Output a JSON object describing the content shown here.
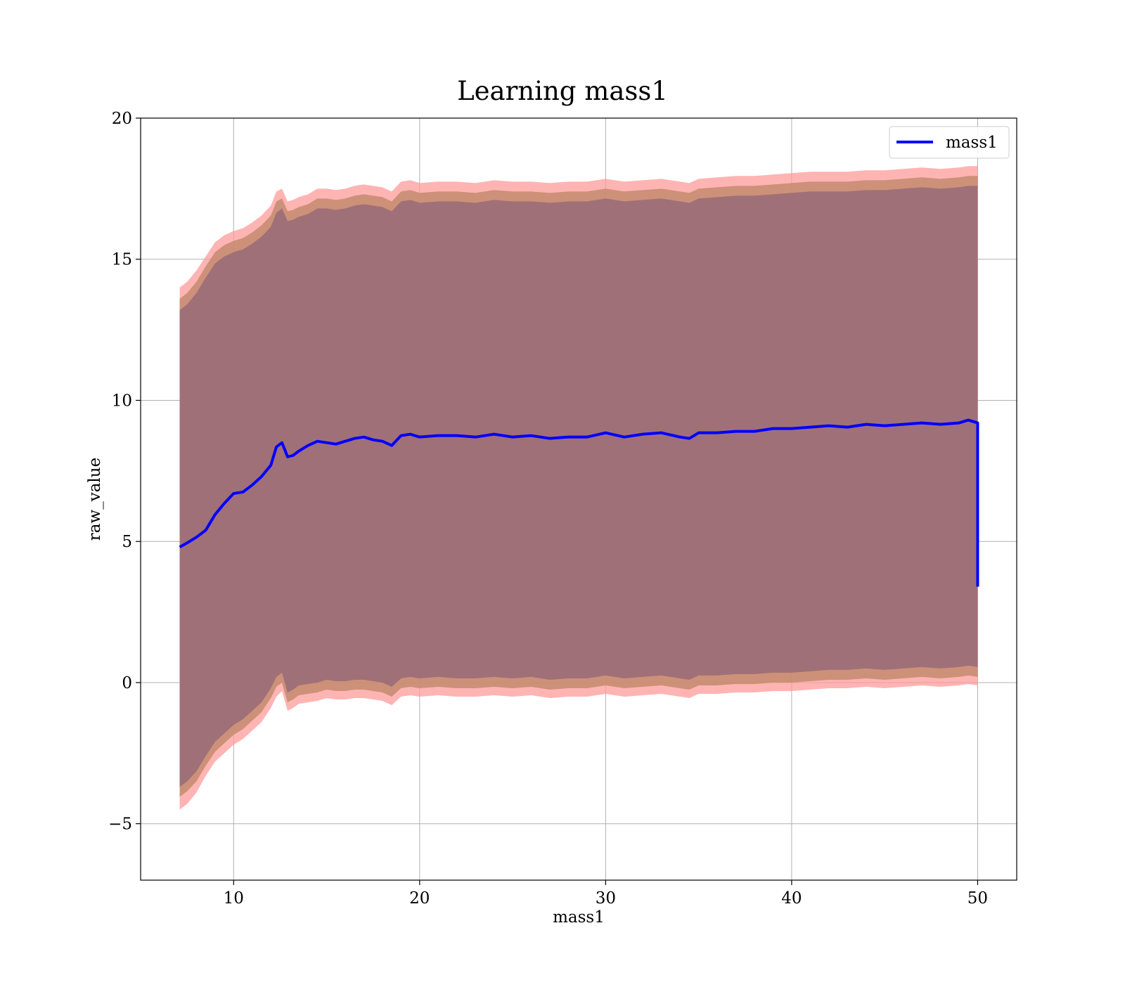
{
  "colors": {
    "line": "#0000ff",
    "band_outer": "#ff9b9b",
    "band_middle": "#c38b6d",
    "band_inner": "#a07078",
    "grid": "#b0b0b0",
    "axes": "#000000"
  },
  "chart_data": {
    "type": "line",
    "title": "Learning mass1",
    "xlabel": "mass1",
    "ylabel": "raw_value",
    "xlim": [
      5,
      52.1
    ],
    "ylim": [
      -7,
      20
    ],
    "xticks": [
      10,
      20,
      30,
      40,
      50
    ],
    "xtick_labels": [
      "10",
      "20",
      "30",
      "40",
      "50"
    ],
    "yticks": [
      -5,
      0,
      5,
      10,
      15,
      20
    ],
    "ytick_labels": [
      "−5",
      "0",
      "5",
      "10",
      "15",
      "20"
    ],
    "grid": true,
    "legend": {
      "location": "upper-right",
      "entries": [
        "mass1"
      ]
    },
    "series": [
      {
        "name": "mass1",
        "x": [
          7.1,
          7.5,
          8,
          8.5,
          9,
          9.5,
          10,
          10.5,
          11,
          11.5,
          12,
          12.3,
          12.6,
          12.9,
          13.2,
          13.5,
          14,
          14.5,
          15,
          15.5,
          16,
          16.5,
          17,
          17.5,
          18,
          18.5,
          19,
          19.5,
          20,
          21,
          22,
          23,
          24,
          25,
          26,
          27,
          28,
          29,
          30,
          31,
          32,
          33,
          34,
          34.5,
          35,
          36,
          37,
          38,
          39,
          40,
          41,
          42,
          43,
          44,
          45,
          46,
          47,
          48,
          49,
          49.5,
          50
        ],
        "values": [
          4.8,
          4.95,
          5.15,
          5.4,
          5.95,
          6.35,
          6.7,
          6.75,
          7.0,
          7.3,
          7.7,
          8.35,
          8.5,
          8.0,
          8.05,
          8.2,
          8.4,
          8.55,
          8.5,
          8.45,
          8.55,
          8.65,
          8.7,
          8.6,
          8.55,
          8.4,
          8.75,
          8.8,
          8.7,
          8.75,
          8.75,
          8.7,
          8.8,
          8.7,
          8.75,
          8.65,
          8.7,
          8.7,
          8.85,
          8.7,
          8.8,
          8.85,
          8.7,
          8.65,
          8.85,
          8.85,
          8.9,
          8.9,
          9.0,
          9.0,
          9.05,
          9.1,
          9.05,
          9.15,
          9.1,
          9.15,
          9.2,
          9.15,
          9.2,
          9.3,
          9.2
        ],
        "end_drop": [
          50,
          3.4
        ]
      }
    ],
    "bands": [
      {
        "name": "outer",
        "lower": [
          -4.5,
          -4.3,
          -3.9,
          -3.3,
          -2.8,
          -2.5,
          -2.2,
          -2.0,
          -1.7,
          -1.4,
          -0.9,
          -0.5,
          -0.3,
          -1.0,
          -0.9,
          -0.75,
          -0.7,
          -0.65,
          -0.55,
          -0.6,
          -0.6,
          -0.55,
          -0.55,
          -0.6,
          -0.65,
          -0.8,
          -0.5,
          -0.45,
          -0.5,
          -0.45,
          -0.5,
          -0.5,
          -0.45,
          -0.5,
          -0.45,
          -0.55,
          -0.5,
          -0.5,
          -0.4,
          -0.5,
          -0.45,
          -0.4,
          -0.5,
          -0.55,
          -0.4,
          -0.4,
          -0.35,
          -0.35,
          -0.3,
          -0.3,
          -0.25,
          -0.2,
          -0.2,
          -0.15,
          -0.2,
          -0.15,
          -0.1,
          -0.15,
          -0.1,
          -0.05,
          -0.1
        ],
        "upper": [
          14.0,
          14.2,
          14.6,
          15.1,
          15.6,
          15.85,
          16.0,
          16.1,
          16.3,
          16.55,
          16.9,
          17.4,
          17.5,
          17.05,
          17.1,
          17.2,
          17.3,
          17.5,
          17.5,
          17.45,
          17.5,
          17.6,
          17.65,
          17.6,
          17.55,
          17.4,
          17.75,
          17.8,
          17.7,
          17.75,
          17.75,
          17.7,
          17.8,
          17.75,
          17.75,
          17.7,
          17.75,
          17.75,
          17.85,
          17.75,
          17.8,
          17.85,
          17.75,
          17.7,
          17.85,
          17.9,
          17.95,
          17.95,
          18.0,
          18.05,
          18.1,
          18.1,
          18.1,
          18.15,
          18.15,
          18.2,
          18.25,
          18.2,
          18.25,
          18.3,
          18.3
        ]
      },
      {
        "name": "middle",
        "lower": [
          -4.05,
          -3.85,
          -3.5,
          -2.95,
          -2.45,
          -2.15,
          -1.85,
          -1.65,
          -1.35,
          -1.05,
          -0.55,
          -0.15,
          0.0,
          -0.7,
          -0.6,
          -0.45,
          -0.4,
          -0.35,
          -0.25,
          -0.3,
          -0.3,
          -0.25,
          -0.25,
          -0.3,
          -0.35,
          -0.5,
          -0.2,
          -0.15,
          -0.2,
          -0.15,
          -0.2,
          -0.2,
          -0.15,
          -0.2,
          -0.15,
          -0.25,
          -0.2,
          -0.2,
          -0.1,
          -0.2,
          -0.15,
          -0.1,
          -0.2,
          -0.25,
          -0.1,
          -0.1,
          -0.05,
          -0.05,
          0.0,
          0.0,
          0.05,
          0.1,
          0.1,
          0.15,
          0.1,
          0.15,
          0.2,
          0.15,
          0.2,
          0.25,
          0.2
        ],
        "upper": [
          13.6,
          13.8,
          14.2,
          14.75,
          15.25,
          15.5,
          15.65,
          15.75,
          15.95,
          16.2,
          16.55,
          17.05,
          17.15,
          16.7,
          16.75,
          16.85,
          16.95,
          17.15,
          17.15,
          17.1,
          17.15,
          17.25,
          17.3,
          17.25,
          17.2,
          17.05,
          17.4,
          17.45,
          17.35,
          17.4,
          17.4,
          17.35,
          17.45,
          17.4,
          17.4,
          17.35,
          17.4,
          17.4,
          17.5,
          17.4,
          17.45,
          17.5,
          17.4,
          17.35,
          17.5,
          17.55,
          17.6,
          17.6,
          17.65,
          17.7,
          17.75,
          17.75,
          17.75,
          17.8,
          17.8,
          17.85,
          17.9,
          17.85,
          17.9,
          17.95,
          17.95
        ]
      },
      {
        "name": "inner",
        "lower": [
          -3.7,
          -3.5,
          -3.15,
          -2.6,
          -2.1,
          -1.8,
          -1.5,
          -1.3,
          -1.0,
          -0.7,
          -0.2,
          0.2,
          0.35,
          -0.35,
          -0.25,
          -0.1,
          -0.05,
          0.0,
          0.1,
          0.05,
          0.05,
          0.1,
          0.1,
          0.05,
          0.0,
          -0.15,
          0.15,
          0.2,
          0.15,
          0.2,
          0.15,
          0.15,
          0.2,
          0.15,
          0.2,
          0.1,
          0.15,
          0.15,
          0.25,
          0.15,
          0.2,
          0.25,
          0.15,
          0.1,
          0.25,
          0.25,
          0.3,
          0.3,
          0.35,
          0.35,
          0.4,
          0.45,
          0.45,
          0.5,
          0.45,
          0.5,
          0.55,
          0.5,
          0.55,
          0.6,
          0.55
        ],
        "upper": [
          13.2,
          13.4,
          13.8,
          14.35,
          14.85,
          15.1,
          15.25,
          15.35,
          15.55,
          15.8,
          16.15,
          16.65,
          16.8,
          16.35,
          16.4,
          16.5,
          16.6,
          16.8,
          16.8,
          16.75,
          16.8,
          16.9,
          16.95,
          16.9,
          16.85,
          16.7,
          17.05,
          17.1,
          17.0,
          17.05,
          17.05,
          17.0,
          17.1,
          17.05,
          17.05,
          17.0,
          17.05,
          17.05,
          17.15,
          17.05,
          17.1,
          17.15,
          17.05,
          17.0,
          17.15,
          17.2,
          17.25,
          17.25,
          17.3,
          17.35,
          17.4,
          17.4,
          17.4,
          17.45,
          17.45,
          17.5,
          17.55,
          17.5,
          17.55,
          17.6,
          17.6
        ]
      }
    ]
  }
}
